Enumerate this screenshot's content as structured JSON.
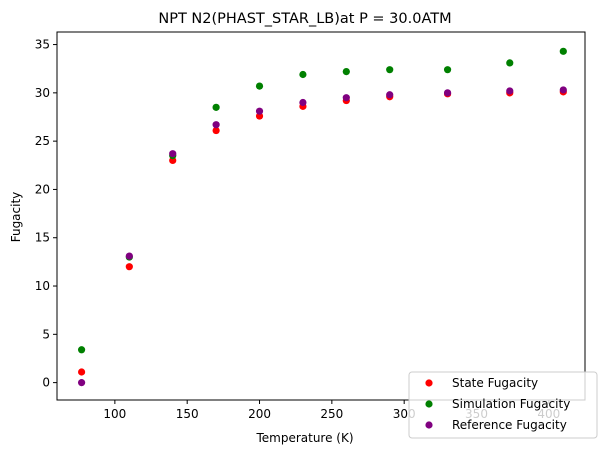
{
  "chart_data": {
    "type": "scatter",
    "title": "NPT N2(PHAST_STAR_LB)at P = 30.0ATM",
    "xlabel": "Temperature (K)",
    "ylabel": "Fugacity",
    "xlim": [
      60,
      425
    ],
    "ylim": [
      -1.8,
      36.3
    ],
    "xticks": [
      100,
      150,
      200,
      250,
      300,
      350,
      400
    ],
    "yticks": [
      0,
      5,
      10,
      15,
      20,
      25,
      30,
      35
    ],
    "grid": false,
    "legend_position": "lower-right",
    "series": [
      {
        "name": "State Fugacity",
        "color": "#ff0000",
        "x": [
          77,
          110,
          140,
          170,
          200,
          230,
          260,
          290,
          330,
          373,
          410
        ],
        "y": [
          1.1,
          12.0,
          23.0,
          26.1,
          27.6,
          28.6,
          29.2,
          29.6,
          29.9,
          30.0,
          30.1
        ]
      },
      {
        "name": "Simulation Fugacity",
        "color": "#008000",
        "x": [
          77,
          110,
          140,
          170,
          200,
          230,
          260,
          290,
          330,
          373,
          410
        ],
        "y": [
          3.4,
          13.0,
          23.5,
          28.5,
          30.7,
          31.9,
          32.2,
          32.4,
          32.4,
          33.1,
          34.3
        ]
      },
      {
        "name": "Reference Fugacity",
        "color": "#800080",
        "x": [
          77,
          110,
          140,
          170,
          200,
          230,
          260,
          290,
          330,
          373,
          410
        ],
        "y": [
          0.0,
          13.1,
          23.7,
          26.7,
          28.1,
          29.0,
          29.5,
          29.8,
          30.0,
          30.2,
          30.3
        ]
      }
    ]
  }
}
